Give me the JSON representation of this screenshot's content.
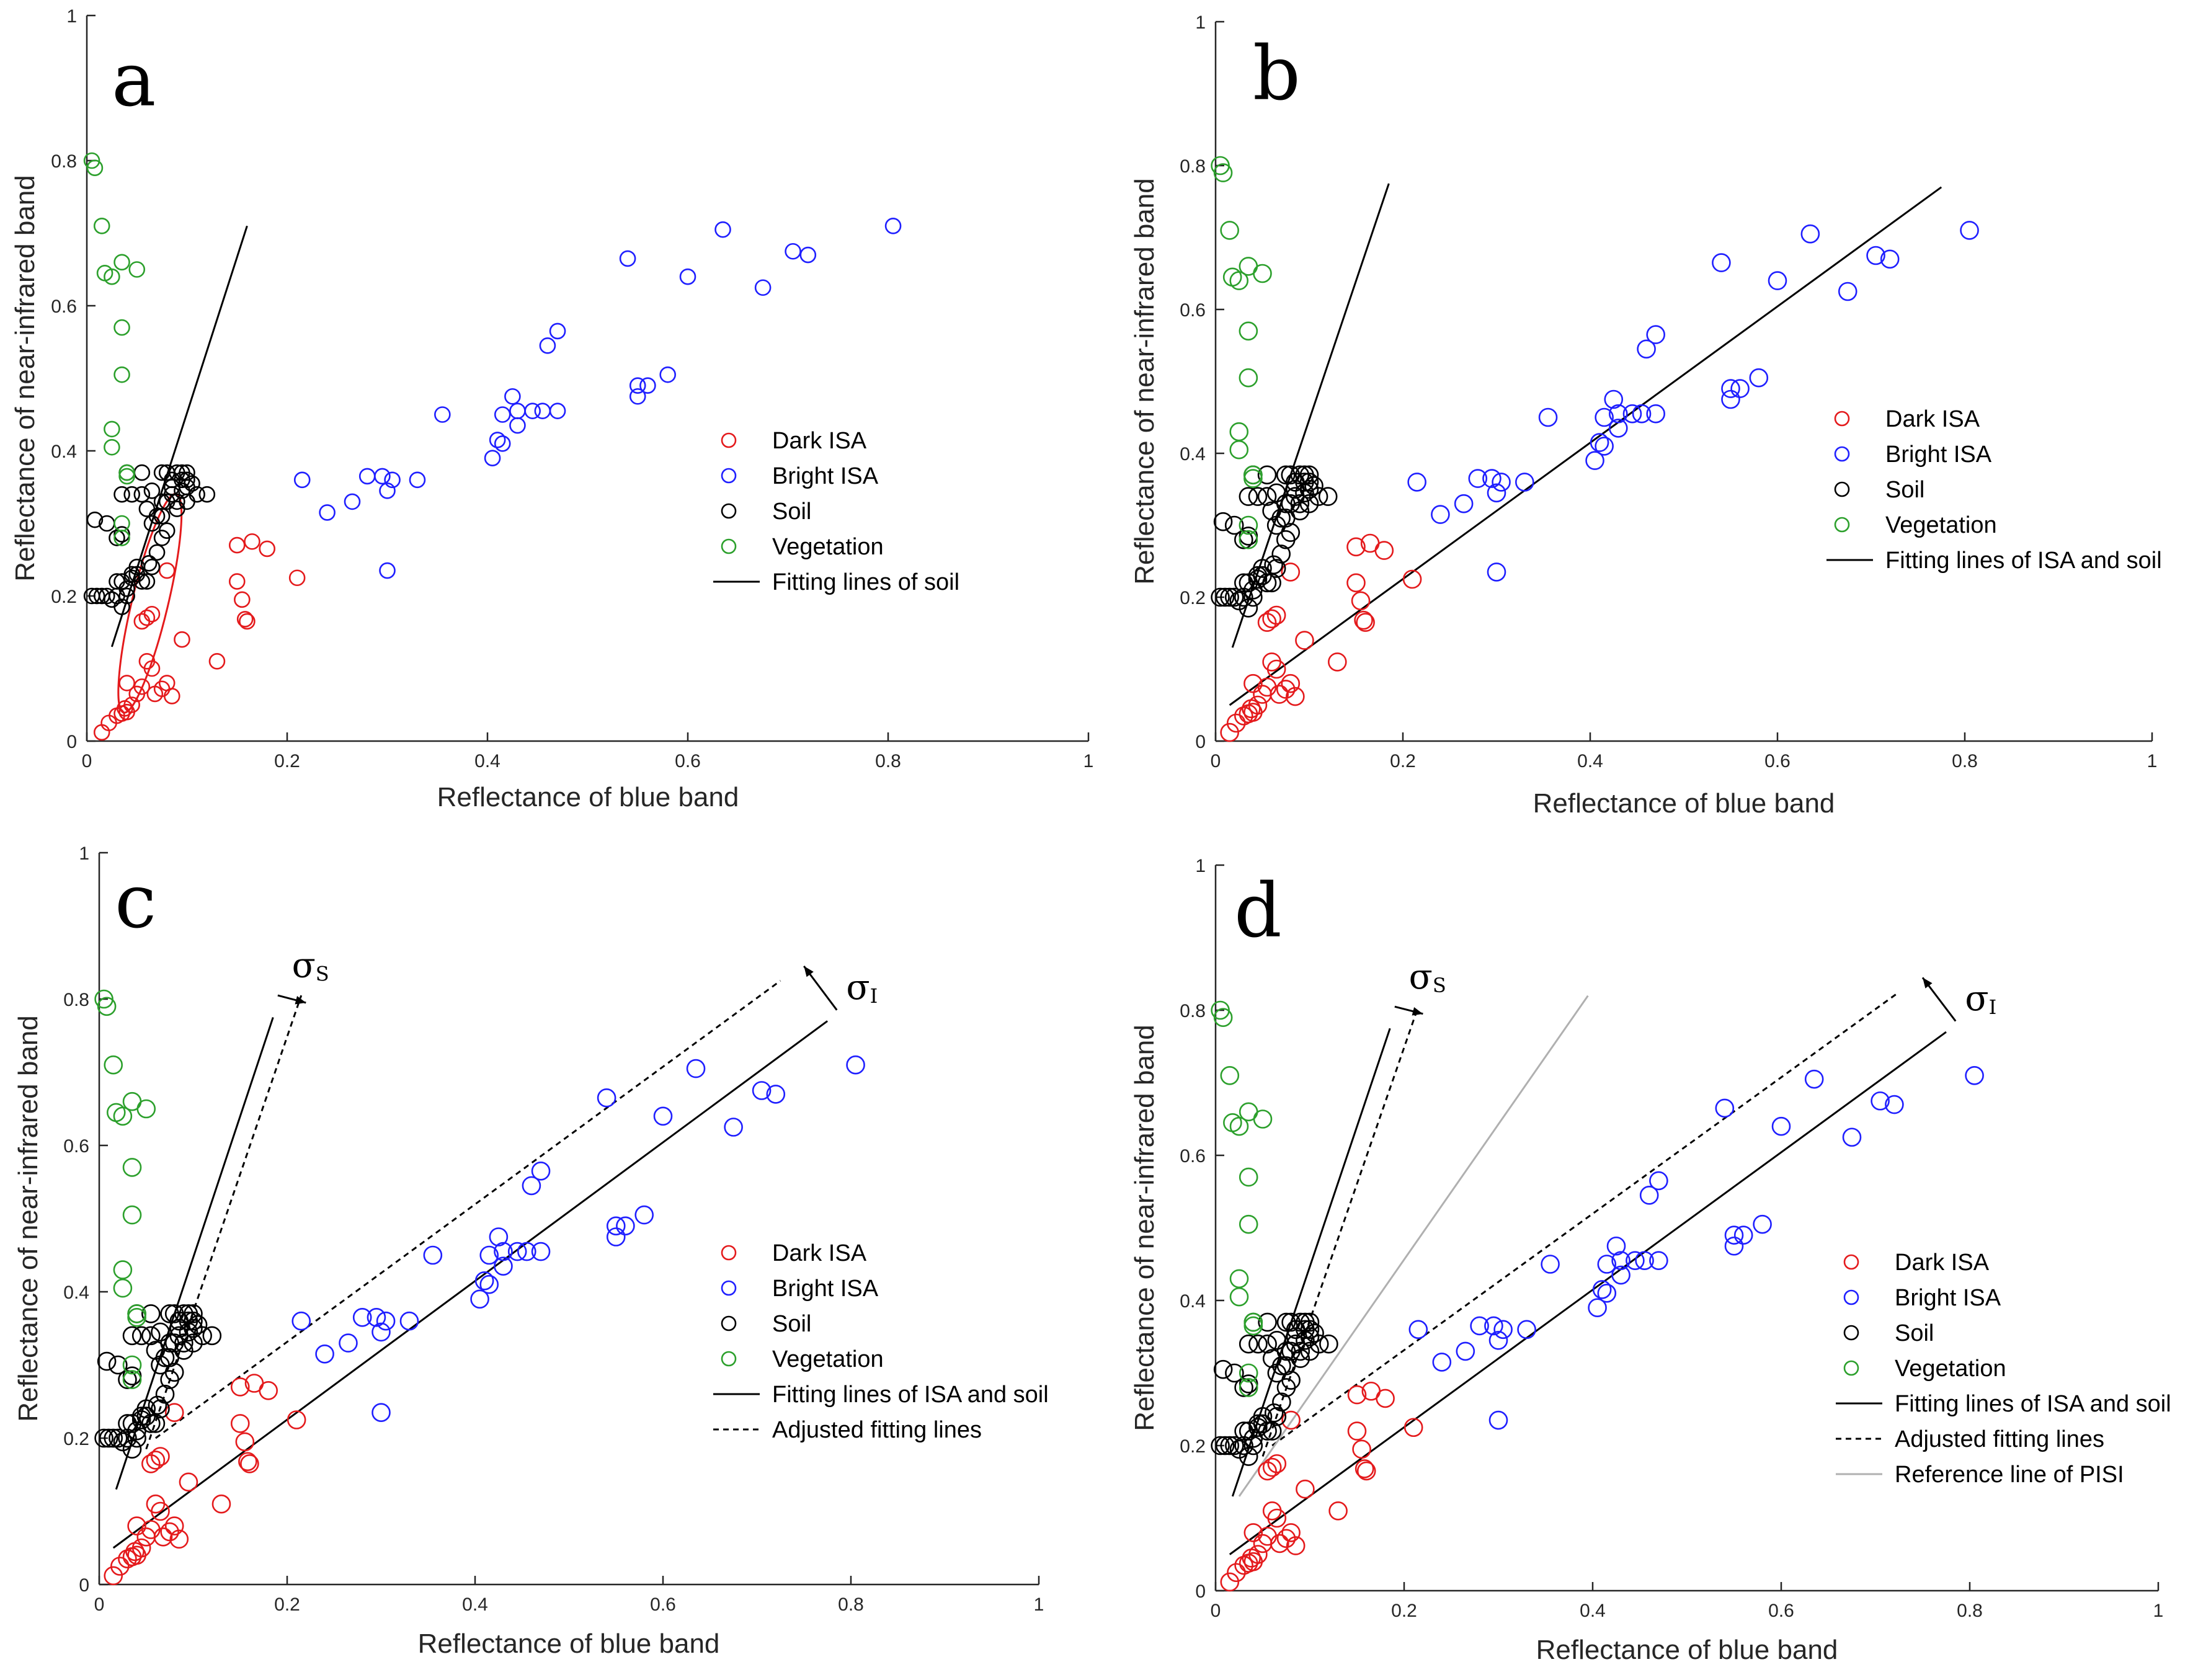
{
  "chart_data": [
    {
      "type": "scatter",
      "panel_letter": "a",
      "xlabel": "Reflectance of blue band",
      "ylabel": "Reflectance of near-infrared band",
      "xlim": [
        0,
        1
      ],
      "ylim": [
        0,
        1
      ],
      "x_ticks": [
        0,
        0.2,
        0.4,
        0.6,
        0.8,
        1
      ],
      "y_ticks": [
        0,
        0.2,
        0.4,
        0.6,
        0.8,
        1
      ],
      "x_tick_labels": [
        "0",
        "0.2",
        "0.4",
        "0.6",
        "0.8",
        "1"
      ],
      "y_tick_labels": [
        "0",
        "0.2",
        "0.4",
        "0.6",
        "0.8",
        "1"
      ],
      "legend": {
        "placement": "right",
        "entries": [
          "Dark ISA",
          "Bright ISA",
          "Soil",
          "Vegetation",
          "Fitting lines of soil"
        ]
      },
      "lines": [
        {
          "style": "solid",
          "color": "#000000",
          "from": [
            0.025,
            0.13
          ],
          "to": [
            0.16,
            0.71
          ]
        }
      ],
      "annotations": [
        {
          "kind": "ellipse",
          "color": "#e41a1c",
          "center": [
            0.063,
            0.19
          ],
          "radii": [
            0.018,
            0.155
          ],
          "angle_deg": 13.5
        }
      ]
    },
    {
      "type": "scatter",
      "panel_letter": "b",
      "xlabel": "Reflectance of blue band",
      "ylabel": "Reflectance of near-infrared band",
      "xlim": [
        0,
        1
      ],
      "ylim": [
        0,
        1
      ],
      "x_ticks": [
        0,
        0.2,
        0.4,
        0.6,
        0.8,
        1
      ],
      "y_ticks": [
        0,
        0.2,
        0.4,
        0.6,
        0.8,
        1
      ],
      "x_tick_labels": [
        "0",
        "0.2",
        "0.4",
        "0.6",
        "0.8",
        "1"
      ],
      "y_tick_labels": [
        "0",
        "0.2",
        "0.4",
        "0.6",
        "0.8",
        "1"
      ],
      "legend": {
        "placement": "right",
        "entries": [
          "Dark ISA",
          "Bright ISA",
          "Soil",
          "Vegetation",
          "Fitting lines of ISA and soil"
        ]
      },
      "lines": [
        {
          "style": "solid",
          "color": "#000000",
          "from": [
            0.018,
            0.13
          ],
          "to": [
            0.185,
            0.775
          ]
        },
        {
          "style": "solid",
          "color": "#000000",
          "from": [
            0.015,
            0.05
          ],
          "to": [
            0.775,
            0.77
          ]
        }
      ]
    },
    {
      "type": "scatter",
      "panel_letter": "c",
      "xlabel": "Reflectance of blue band",
      "ylabel": "Reflectance of near-infrared band",
      "xlim": [
        0,
        1
      ],
      "ylim": [
        0,
        1
      ],
      "x_ticks": [
        0,
        0.2,
        0.4,
        0.6,
        0.8,
        1
      ],
      "y_ticks": [
        0,
        0.2,
        0.4,
        0.6,
        0.8,
        1
      ],
      "x_tick_labels": [
        "0",
        "0.2",
        "0.4",
        "0.6",
        "0.8",
        "1"
      ],
      "y_tick_labels": [
        "0",
        "0.2",
        "0.4",
        "0.6",
        "0.8",
        "1"
      ],
      "legend": {
        "placement": "right",
        "entries": [
          "Dark ISA",
          "Bright ISA",
          "Soil",
          "Vegetation",
          "Fitting lines of ISA and soil",
          "Adjusted fitting lines"
        ]
      },
      "lines": [
        {
          "style": "solid",
          "color": "#000000",
          "from": [
            0.018,
            0.13
          ],
          "to": [
            0.185,
            0.775
          ]
        },
        {
          "style": "solid",
          "color": "#000000",
          "from": [
            0.015,
            0.05
          ],
          "to": [
            0.775,
            0.77
          ]
        },
        {
          "style": "dashed",
          "color": "#000000",
          "from": [
            0.05,
            0.185
          ],
          "to": [
            0.215,
            0.805
          ]
        },
        {
          "style": "dashed",
          "color": "#000000",
          "from": [
            0.06,
            0.2
          ],
          "to": [
            0.725,
            0.825
          ]
        }
      ],
      "annotations": [
        {
          "kind": "arrow",
          "from": [
            0.19,
            0.805
          ],
          "to": [
            0.22,
            0.795
          ]
        },
        {
          "kind": "arrow",
          "from": [
            0.785,
            0.785
          ],
          "to": [
            0.75,
            0.845
          ]
        },
        {
          "kind": "label",
          "text": "σ",
          "subscript": "S",
          "at": [
            0.205,
            0.83
          ]
        },
        {
          "kind": "label",
          "text": "σ",
          "subscript": "I",
          "at": [
            0.795,
            0.8
          ]
        }
      ]
    },
    {
      "type": "scatter",
      "panel_letter": "d",
      "xlabel": "Reflectance of blue band",
      "ylabel": "Reflectance of near-infrared band",
      "xlim": [
        0,
        1
      ],
      "ylim": [
        0,
        1
      ],
      "x_ticks": [
        0,
        0.2,
        0.4,
        0.6,
        0.8,
        1
      ],
      "y_ticks": [
        0,
        0.2,
        0.4,
        0.6,
        0.8,
        1
      ],
      "x_tick_labels": [
        "0",
        "0.2",
        "0.4",
        "0.6",
        "0.8",
        "1"
      ],
      "y_tick_labels": [
        "0",
        "0.2",
        "0.4",
        "0.6",
        "0.8",
        "1"
      ],
      "legend": {
        "placement": "right",
        "entries": [
          "Dark ISA",
          "Bright ISA",
          "Soil",
          "Vegetation",
          "Fitting lines of ISA and soil",
          "Adjusted fitting lines",
          "Reference line of PISI"
        ]
      },
      "lines": [
        {
          "style": "solid",
          "color": "#000000",
          "from": [
            0.018,
            0.13
          ],
          "to": [
            0.185,
            0.775
          ]
        },
        {
          "style": "solid",
          "color": "#000000",
          "from": [
            0.015,
            0.05
          ],
          "to": [
            0.775,
            0.77
          ]
        },
        {
          "style": "dashed",
          "color": "#000000",
          "from": [
            0.05,
            0.185
          ],
          "to": [
            0.215,
            0.805
          ]
        },
        {
          "style": "dashed",
          "color": "#000000",
          "from": [
            0.06,
            0.2
          ],
          "to": [
            0.725,
            0.825
          ]
        },
        {
          "style": "solid",
          "color": "#b0b0b0",
          "from": [
            0.025,
            0.13
          ],
          "to": [
            0.395,
            0.82
          ]
        }
      ],
      "annotations": [
        {
          "kind": "arrow",
          "from": [
            0.19,
            0.805
          ],
          "to": [
            0.22,
            0.795
          ]
        },
        {
          "kind": "arrow",
          "from": [
            0.785,
            0.785
          ],
          "to": [
            0.75,
            0.845
          ]
        },
        {
          "kind": "label",
          "text": "σ",
          "subscript": "S",
          "at": [
            0.205,
            0.83
          ]
        },
        {
          "kind": "label",
          "text": "σ",
          "subscript": "I",
          "at": [
            0.795,
            0.8
          ]
        }
      ]
    }
  ],
  "series": [
    {
      "name": "Dark ISA",
      "color": "#e41a1c",
      "points": [
        [
          0.015,
          0.012
        ],
        [
          0.022,
          0.025
        ],
        [
          0.03,
          0.035
        ],
        [
          0.035,
          0.038
        ],
        [
          0.04,
          0.04
        ],
        [
          0.038,
          0.045
        ],
        [
          0.045,
          0.05
        ],
        [
          0.05,
          0.065
        ],
        [
          0.04,
          0.08
        ],
        [
          0.055,
          0.075
        ],
        [
          0.068,
          0.065
        ],
        [
          0.075,
          0.072
        ],
        [
          0.085,
          0.062
        ],
        [
          0.08,
          0.08
        ],
        [
          0.065,
          0.1
        ],
        [
          0.06,
          0.11
        ],
        [
          0.095,
          0.14
        ],
        [
          0.13,
          0.11
        ],
        [
          0.055,
          0.165
        ],
        [
          0.06,
          0.17
        ],
        [
          0.065,
          0.175
        ],
        [
          0.08,
          0.235
        ],
        [
          0.15,
          0.27
        ],
        [
          0.15,
          0.22
        ],
        [
          0.155,
          0.195
        ],
        [
          0.16,
          0.165
        ],
        [
          0.158,
          0.168
        ],
        [
          0.165,
          0.275
        ],
        [
          0.18,
          0.265
        ],
        [
          0.21,
          0.225
        ]
      ]
    },
    {
      "name": "Bright ISA",
      "color": "#1f1fff",
      "points": [
        [
          0.215,
          0.36
        ],
        [
          0.24,
          0.315
        ],
        [
          0.265,
          0.33
        ],
        [
          0.28,
          0.365
        ],
        [
          0.295,
          0.365
        ],
        [
          0.305,
          0.36
        ],
        [
          0.3,
          0.345
        ],
        [
          0.3,
          0.235
        ],
        [
          0.33,
          0.36
        ],
        [
          0.355,
          0.45
        ],
        [
          0.405,
          0.39
        ],
        [
          0.41,
          0.415
        ],
        [
          0.415,
          0.41
        ],
        [
          0.415,
          0.45
        ],
        [
          0.425,
          0.475
        ],
        [
          0.43,
          0.455
        ],
        [
          0.43,
          0.435
        ],
        [
          0.445,
          0.455
        ],
        [
          0.455,
          0.455
        ],
        [
          0.47,
          0.455
        ],
        [
          0.46,
          0.545
        ],
        [
          0.47,
          0.565
        ],
        [
          0.54,
          0.665
        ],
        [
          0.55,
          0.475
        ],
        [
          0.55,
          0.49
        ],
        [
          0.56,
          0.49
        ],
        [
          0.58,
          0.505
        ],
        [
          0.6,
          0.64
        ],
        [
          0.635,
          0.705
        ],
        [
          0.675,
          0.625
        ],
        [
          0.705,
          0.675
        ],
        [
          0.72,
          0.67
        ],
        [
          0.805,
          0.71
        ]
      ]
    },
    {
      "name": "Soil",
      "color": "#000000",
      "points": [
        [
          0.005,
          0.2
        ],
        [
          0.01,
          0.2
        ],
        [
          0.015,
          0.2
        ],
        [
          0.02,
          0.2
        ],
        [
          0.03,
          0.2
        ],
        [
          0.035,
          0.185
        ],
        [
          0.04,
          0.21
        ],
        [
          0.045,
          0.225
        ],
        [
          0.045,
          0.23
        ],
        [
          0.05,
          0.23
        ],
        [
          0.055,
          0.22
        ],
        [
          0.05,
          0.24
        ],
        [
          0.06,
          0.22
        ],
        [
          0.062,
          0.245
        ],
        [
          0.065,
          0.24
        ],
        [
          0.03,
          0.22
        ],
        [
          0.035,
          0.22
        ],
        [
          0.04,
          0.2
        ],
        [
          0.025,
          0.195
        ],
        [
          0.008,
          0.305
        ],
        [
          0.02,
          0.3
        ],
        [
          0.03,
          0.28
        ],
        [
          0.035,
          0.285
        ],
        [
          0.035,
          0.34
        ],
        [
          0.045,
          0.34
        ],
        [
          0.055,
          0.34
        ],
        [
          0.065,
          0.345
        ],
        [
          0.04,
          0.37
        ],
        [
          0.055,
          0.37
        ],
        [
          0.075,
          0.37
        ],
        [
          0.08,
          0.37
        ],
        [
          0.085,
          0.36
        ],
        [
          0.09,
          0.37
        ],
        [
          0.095,
          0.37
        ],
        [
          0.1,
          0.37
        ],
        [
          0.1,
          0.36
        ],
        [
          0.1,
          0.35
        ],
        [
          0.095,
          0.345
        ],
        [
          0.085,
          0.34
        ],
        [
          0.08,
          0.33
        ],
        [
          0.09,
          0.32
        ],
        [
          0.075,
          0.31
        ],
        [
          0.08,
          0.29
        ],
        [
          0.075,
          0.28
        ],
        [
          0.07,
          0.26
        ],
        [
          0.065,
          0.3
        ],
        [
          0.06,
          0.32
        ],
        [
          0.09,
          0.33
        ],
        [
          0.1,
          0.33
        ],
        [
          0.11,
          0.34
        ],
        [
          0.12,
          0.34
        ],
        [
          0.085,
          0.35
        ],
        [
          0.095,
          0.36
        ],
        [
          0.105,
          0.355
        ],
        [
          0.075,
          0.33
        ],
        [
          0.07,
          0.31
        ]
      ]
    },
    {
      "name": "Vegetation",
      "color": "#2ca02c",
      "points": [
        [
          0.005,
          0.8
        ],
        [
          0.008,
          0.79
        ],
        [
          0.015,
          0.71
        ],
        [
          0.018,
          0.645
        ],
        [
          0.025,
          0.64
        ],
        [
          0.035,
          0.66
        ],
        [
          0.05,
          0.65
        ],
        [
          0.035,
          0.57
        ],
        [
          0.035,
          0.505
        ],
        [
          0.025,
          0.43
        ],
        [
          0.025,
          0.405
        ],
        [
          0.04,
          0.37
        ],
        [
          0.035,
          0.3
        ],
        [
          0.035,
          0.28
        ],
        [
          0.04,
          0.365
        ]
      ]
    }
  ]
}
